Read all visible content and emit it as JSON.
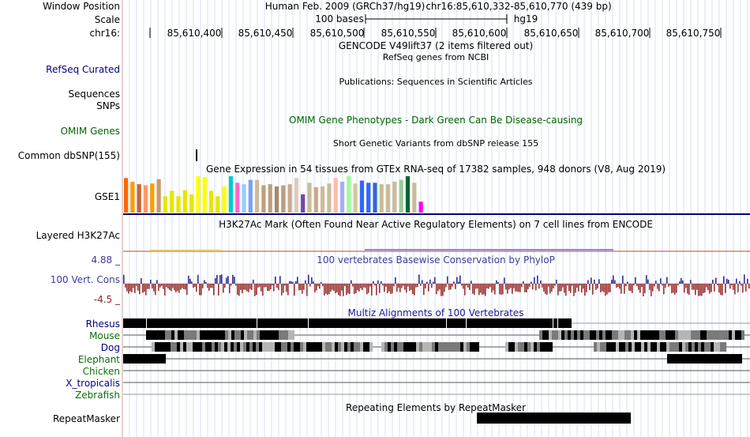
{
  "header": {
    "window_position_label": "Window Position",
    "scale_label": "Scale",
    "chrom_label": "chr16:",
    "assembly_text": "Human Feb. 2009 (GRCh37/hg19)",
    "position_text": "chr16:85,610,332-85,610,770 (439 bp)",
    "scale_text": "100 bases",
    "db_text": "hg19",
    "ticks": [
      "85,610,400",
      "85,610,450",
      "85,610,500",
      "85,610,550",
      "85,610,600",
      "85,610,650",
      "85,610,700",
      "85,610,750"
    ]
  },
  "tracks": {
    "gencode_title": "GENCODE V49lift37 (2 items filtered out)",
    "refseq_label": "RefSeq Curated",
    "refseq_title": "RefSeq genes from NCBI",
    "publications_title": "Publications: Sequences in Scientific Articles",
    "sequences_label": "Sequences",
    "snps_label": "SNPs",
    "omim_label": "OMIM Genes",
    "omim_title": "OMIM Gene Phenotypes - Dark Green Can Be Disease-causing",
    "dbsnp_title": "Short Genetic Variants from dbSNP release 155",
    "dbsnp_label": "Common dbSNP(155)",
    "gtex_title": "Gene Expression in 54 tissues from GTEx RNA-seq of 17382 samples, 948 donors (V8, Aug 2019)",
    "gtex_label": "GSE1",
    "h3k27ac_title": "H3K27Ac Mark (Often Found Near Active Regulatory Elements) on 7 cell lines from ENCODE",
    "h3k27ac_label": "Layered H3K27Ac",
    "cons_max": "4.88 _",
    "cons_min": "-4.5 _",
    "cons_label": "100 Vert. Cons",
    "cons_title": "100 vertebrates Basewise Conservation by PhyloP",
    "multiz_title": "Multiz Alignments of 100 Vertebrates",
    "species": [
      "Rhesus",
      "Mouse",
      "Dog",
      "Elephant",
      "Chicken",
      "X_tropicalis",
      "Zebrafish"
    ],
    "repeat_title": "Repeating Elements by RepeatMasker",
    "repeat_label": "RepeatMasker"
  },
  "colors": {
    "gtex_bars": [
      "#ff6600",
      "#ff9900",
      "#cc6633",
      "#ff9966",
      "#ff9900",
      "#cc9966",
      "#e6e600",
      "#e6e600",
      "#e6e600",
      "#e6e600",
      "#e6e600",
      "#ffff00",
      "#ffff00",
      "#e6e600",
      "#e6e600",
      "#ffff00",
      "#00cccc",
      "#ff66cc",
      "#99ccff",
      "#7aa0ff",
      "#ccbb99",
      "#bba080",
      "#bba080",
      "#aa8866",
      "#bba080",
      "#ccaa88",
      "#ddccbb",
      "#7744aa",
      "#ccbb99",
      "#ccaa88",
      "#ccbb99",
      "#ccbb99",
      "#ffbbaa",
      "#aaaaff",
      "#99ff99",
      "#cccc99",
      "#3366ff",
      "#3366ff",
      "#3366cc",
      "#ccbb99",
      "#ccbb99",
      "#ccbb99",
      "#99cc99",
      "#006633",
      "#ccbb99",
      "#ff00ff"
    ],
    "gtex_levels": [
      0.95,
      0.85,
      0.78,
      0.75,
      0.8,
      0.92,
      0.45,
      0.6,
      0.45,
      0.62,
      0.5,
      1.0,
      0.98,
      0.6,
      0.45,
      0.72,
      1.0,
      0.82,
      0.78,
      0.9,
      0.9,
      0.75,
      0.78,
      0.72,
      0.75,
      0.78,
      0.95,
      0.5,
      0.82,
      0.7,
      0.72,
      0.8,
      0.95,
      0.85,
      1.0,
      0.8,
      0.88,
      0.82,
      0.82,
      0.78,
      0.78,
      0.85,
      0.9,
      1.0,
      0.82,
      0.3
    ],
    "cons_pos": "#2d2d99",
    "cons_neg": "#993333",
    "track_blue": "#000080"
  }
}
